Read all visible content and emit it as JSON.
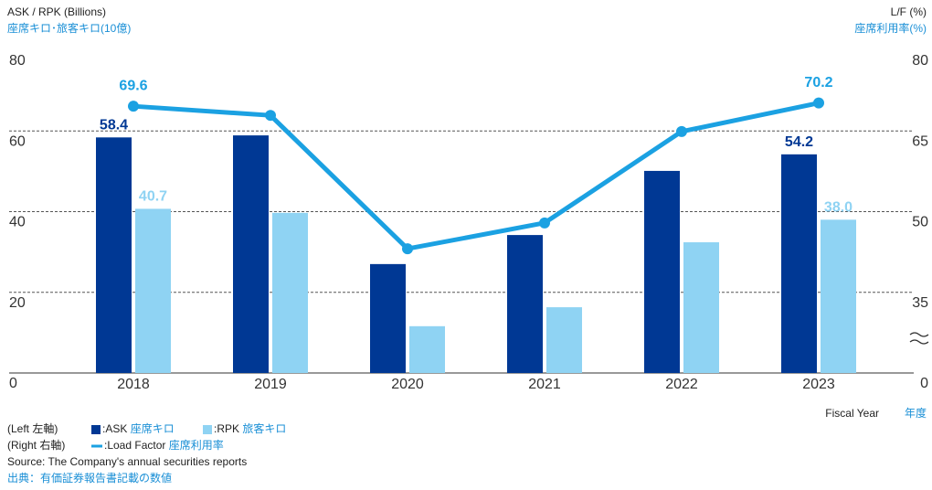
{
  "chart_data": {
    "type": "bar-line",
    "y_label": "ASK / RPK (Billions)",
    "y_label_ja": "座席キロ･旅客キロ(10億)",
    "y2_label": "L/F (%)",
    "y2_label_ja": "座席利用率(%)",
    "x_label": "Fiscal Year",
    "x_label_ja": "年度",
    "categories": [
      "2018",
      "2019",
      "2020",
      "2021",
      "2022",
      "2023"
    ],
    "ylim": [
      0,
      80
    ],
    "yticks": [
      0,
      20,
      40,
      60,
      80
    ],
    "y2lim": [
      0,
      80
    ],
    "y2break": [
      0,
      20
    ],
    "y2ticks": [
      0,
      35,
      50,
      65,
      80
    ],
    "grid": true,
    "series": [
      {
        "name": "ASK 座席キロ",
        "legend": ":ASK",
        "color": "#003894",
        "type": "bar",
        "values": [
          58.4,
          58.9,
          27.0,
          34.2,
          50.1,
          54.2
        ],
        "value_labels": [
          "58.4",
          null,
          null,
          null,
          null,
          "54.2"
        ]
      },
      {
        "name": "RPK 旅客キロ",
        "legend": ":RPK",
        "color": "#8fd3f3",
        "type": "bar",
        "values": [
          40.7,
          39.7,
          11.6,
          16.3,
          32.4,
          38.0
        ],
        "value_labels": [
          "40.7",
          null,
          null,
          null,
          null,
          "38.0"
        ]
      },
      {
        "name": "Load Factor 座席利用率",
        "legend": ":Load Factor",
        "color": "#1ba1e2",
        "type": "line",
        "axis": "y2",
        "values": [
          69.6,
          67.9,
          43.1,
          47.9,
          64.9,
          70.2
        ],
        "value_labels": [
          "69.6",
          null,
          null,
          null,
          null,
          "70.2"
        ]
      }
    ],
    "legend_left": "(Left 左軸)",
    "legend_right": "(Right 右軸)",
    "source": "Source: The Company's annual securities reports",
    "source_ja": "出典：有価証券報告書記載の数値"
  }
}
